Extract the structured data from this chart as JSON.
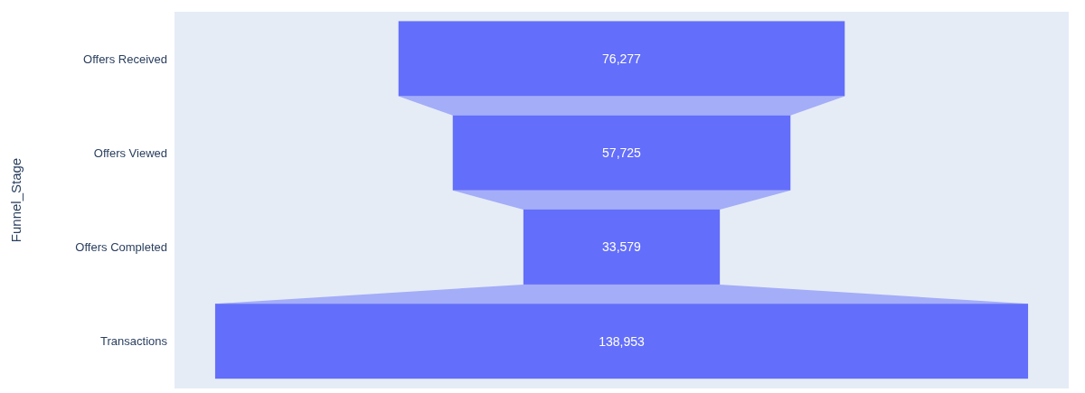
{
  "chart_data": {
    "type": "other",
    "ylabel": "Funnel_Stage",
    "categories": [
      "Offers Received",
      "Offers Viewed",
      "Offers Completed",
      "Transactions"
    ],
    "values": [
      76277,
      57725,
      33579,
      138953
    ],
    "value_labels": [
      "76,277",
      "57,725",
      "33,579",
      "138,953"
    ],
    "color": "#636efa"
  }
}
